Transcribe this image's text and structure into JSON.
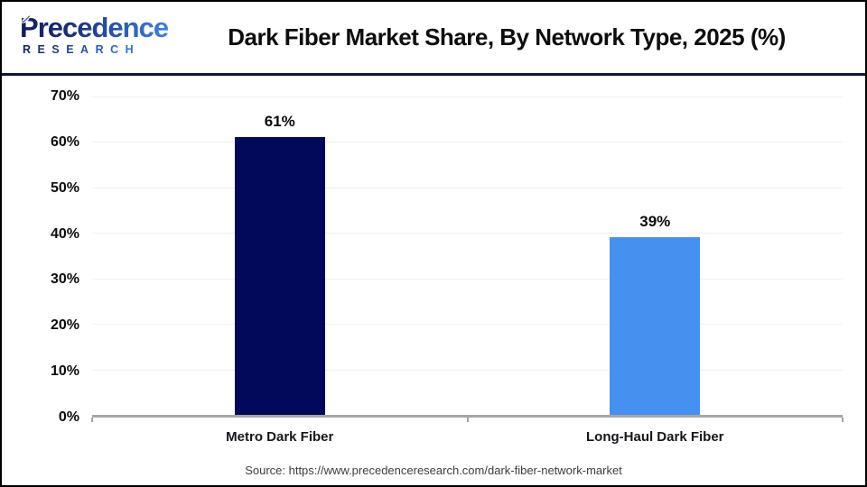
{
  "logo": {
    "initial": "P",
    "rest": "recedence",
    "subtitle": "RESEARCH",
    "icon": "leaf-icon",
    "color_dark": "#141d5c",
    "color_light": "#3b82e0"
  },
  "header": {
    "title": "Dark Fiber Market Share, By Network Type, 2025 (%)"
  },
  "chart_data": {
    "type": "bar",
    "title": "Dark Fiber Market Share, By Network Type, 2025 (%)",
    "categories": [
      "Metro Dark Fiber",
      "Long-Haul Dark Fiber"
    ],
    "values": [
      61,
      39
    ],
    "value_labels": [
      "61%",
      "39%"
    ],
    "bar_colors": [
      "#02095a",
      "#4690ef"
    ],
    "xlabel": "",
    "ylabel": "",
    "ylim": [
      0,
      70
    ],
    "yticks": [
      0,
      10,
      20,
      30,
      40,
      50,
      60,
      70
    ],
    "ytick_labels": [
      "0%",
      "10%",
      "20%",
      "30%",
      "40%",
      "50%",
      "60%",
      "70%"
    ],
    "grid": "horizontal",
    "legend": "none",
    "gridline_color": "#f1f1f1",
    "axis_line_color": "#a6a6a6"
  },
  "footer": {
    "source": "Source: https://www.precedenceresearch.com/dark-fiber-network-market"
  }
}
